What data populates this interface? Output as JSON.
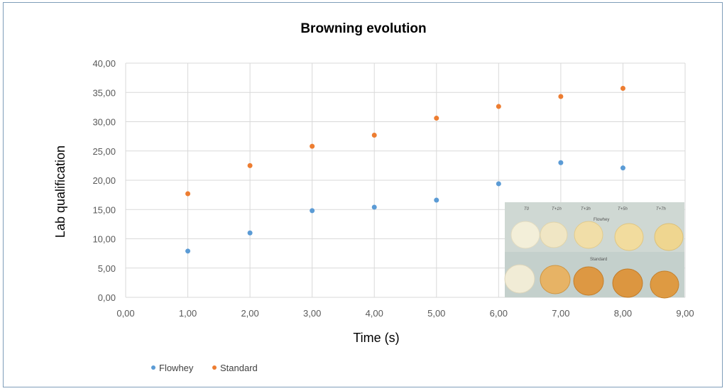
{
  "chart_data": {
    "type": "scatter",
    "title": "Browning evolution",
    "xlabel": "Time (s)",
    "ylabel": "Lab qualification",
    "xlim": [
      0,
      9
    ],
    "ylim": [
      0,
      40
    ],
    "x_ticks": [
      "0,00",
      "1,00",
      "2,00",
      "3,00",
      "4,00",
      "5,00",
      "6,00",
      "7,00",
      "8,00",
      "9,00"
    ],
    "y_ticks": [
      "0,00",
      "5,00",
      "10,00",
      "15,00",
      "20,00",
      "25,00",
      "30,00",
      "35,00",
      "40,00"
    ],
    "grid": true,
    "legend_position": "bottom-left",
    "series": [
      {
        "name": "Flowhey",
        "color": "#5b9bd5",
        "x": [
          1,
          2,
          3,
          4,
          5,
          6,
          7,
          8
        ],
        "y": [
          7.9,
          11.0,
          14.8,
          15.4,
          16.6,
          19.4,
          23.0,
          22.1
        ]
      },
      {
        "name": "Standard",
        "color": "#ed7d31",
        "x": [
          1,
          2,
          3,
          4,
          5,
          6,
          7,
          8
        ],
        "y": [
          17.7,
          22.5,
          25.8,
          27.7,
          30.6,
          32.6,
          34.3,
          35.7
        ]
      }
    ]
  },
  "inset_photo": {
    "labels": [
      "T0",
      "T+1h",
      "T+3h",
      "T+5h",
      "T+7h"
    ],
    "row_labels": [
      "Flowhey",
      "Standard"
    ]
  }
}
